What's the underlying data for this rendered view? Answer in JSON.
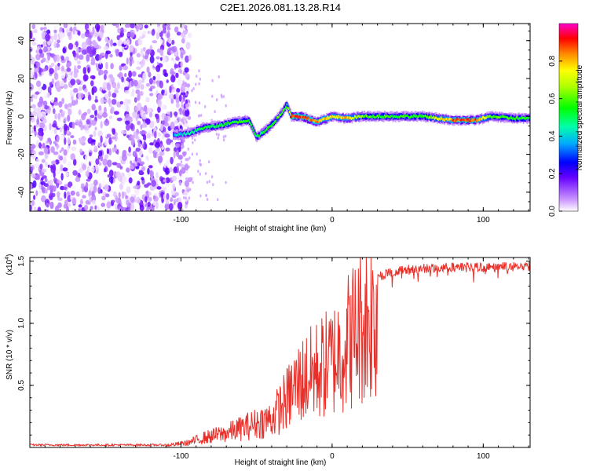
{
  "title": "C2E1.2026.081.13.28.R14",
  "chart_data": [
    {
      "type": "heatmap",
      "xlabel": "Height of straight line (km)",
      "ylabel": "Frequency (Hz)",
      "xlim": [
        -200,
        131
      ],
      "ylim": [
        -50,
        49
      ],
      "x_ticks": [
        -100,
        0,
        100
      ],
      "x_tick_labels": [
        "-100",
        "0",
        "100"
      ],
      "y_ticks": [
        -40,
        -20,
        0,
        20,
        40
      ],
      "y_tick_labels": [
        "-40",
        "-20",
        "0",
        "20",
        "40"
      ],
      "colorbar": {
        "label": "Normalized spectral amplitude",
        "range": [
          0,
          1
        ],
        "ticks": [
          0.0,
          0.2,
          0.4,
          0.6,
          0.8
        ],
        "tick_labels": [
          "0.0",
          "0.2",
          "0.4",
          "0.6",
          "0.8"
        ]
      },
      "noise_region": {
        "x_range": [
          -200,
          -100
        ],
        "freq_range": [
          -50,
          49
        ],
        "amplitude": 0.15
      },
      "signal_track": [
        {
          "x": -105,
          "f": -10,
          "a": 0.35
        },
        {
          "x": -95,
          "f": -9,
          "a": 0.45
        },
        {
          "x": -85,
          "f": -6,
          "a": 0.5
        },
        {
          "x": -75,
          "f": -5,
          "a": 0.5
        },
        {
          "x": -65,
          "f": -3,
          "a": 0.55
        },
        {
          "x": -55,
          "f": -2,
          "a": 0.55
        },
        {
          "x": -50,
          "f": -11,
          "a": 0.5
        },
        {
          "x": -42,
          "f": -6,
          "a": 0.55
        },
        {
          "x": -35,
          "f": 0,
          "a": 0.6
        },
        {
          "x": -30,
          "f": 6,
          "a": 0.55
        },
        {
          "x": -27,
          "f": 0,
          "a": 0.9
        },
        {
          "x": -20,
          "f": 0,
          "a": 0.9
        },
        {
          "x": -10,
          "f": -3,
          "a": 0.85
        },
        {
          "x": 0,
          "f": 0,
          "a": 0.75
        },
        {
          "x": 10,
          "f": -1,
          "a": 0.8
        },
        {
          "x": 20,
          "f": 0,
          "a": 0.6
        },
        {
          "x": 40,
          "f": 0,
          "a": 0.55
        },
        {
          "x": 60,
          "f": 0,
          "a": 0.55
        },
        {
          "x": 80,
          "f": -2,
          "a": 0.85
        },
        {
          "x": 95,
          "f": -2,
          "a": 0.9
        },
        {
          "x": 105,
          "f": 0,
          "a": 0.6
        },
        {
          "x": 120,
          "f": -1,
          "a": 0.55
        },
        {
          "x": 131,
          "f": -1,
          "a": 0.55
        }
      ]
    },
    {
      "type": "line",
      "xlabel": "Height of straight line (km)",
      "ylabel": "SNR (10 * v/v)",
      "y_multiplier_label": "(x10",
      "y_multiplier_exp": "4",
      "y_multiplier_close": ")",
      "xlim": [
        -200,
        131
      ],
      "ylim": [
        0,
        1.53
      ],
      "x_ticks": [
        -100,
        0,
        100
      ],
      "x_tick_labels": [
        "-100",
        "0",
        "100"
      ],
      "y_ticks": [
        0.5,
        1.0,
        1.5
      ],
      "y_tick_labels": [
        "0.5",
        "1.0",
        "1.5"
      ],
      "series": [
        {
          "name": "SNR",
          "color": "#e8302a",
          "envelope_x": [
            -200,
            -110,
            -95,
            -85,
            -70,
            -60,
            -50,
            -40,
            -35,
            -30,
            -25,
            -20,
            -15,
            -10,
            -5,
            0,
            5,
            10,
            15,
            20,
            25,
            30,
            40,
            50,
            60,
            80,
            100,
            131
          ],
          "envelope_y": [
            0.02,
            0.02,
            0.05,
            0.1,
            0.15,
            0.2,
            0.25,
            0.3,
            0.4,
            0.5,
            0.62,
            0.7,
            0.75,
            0.8,
            0.85,
            0.9,
            1.0,
            1.1,
            1.2,
            1.3,
            1.35,
            1.38,
            1.42,
            1.44,
            1.45,
            1.46,
            1.46,
            1.47
          ]
        }
      ]
    }
  ]
}
